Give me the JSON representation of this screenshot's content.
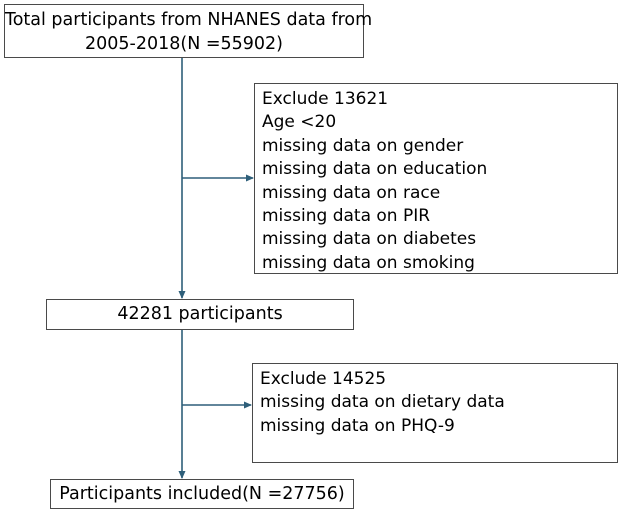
{
  "flow": {
    "top_box": {
      "lines": [
        "Total participants from NHANES data from",
        "2005-2018(N =55902)"
      ]
    },
    "exclusion_1": {
      "lines": [
        "Exclude 13621",
        "Age <20",
        "missing data on gender",
        "missing data on education",
        "missing data on race",
        "missing data on PIR",
        "missing data on diabetes",
        "missing data on smoking"
      ]
    },
    "middle_box": {
      "label": "42281 participants"
    },
    "exclusion_2": {
      "lines": [
        "Exclude 14525",
        "missing data on dietary data",
        "missing data on PHQ-9"
      ]
    },
    "bottom_box": {
      "label": "Participants included(N =27756)"
    }
  },
  "colors": {
    "arrow": "#2e5f7a",
    "border": "#4a4a4a",
    "text": "#000000"
  }
}
